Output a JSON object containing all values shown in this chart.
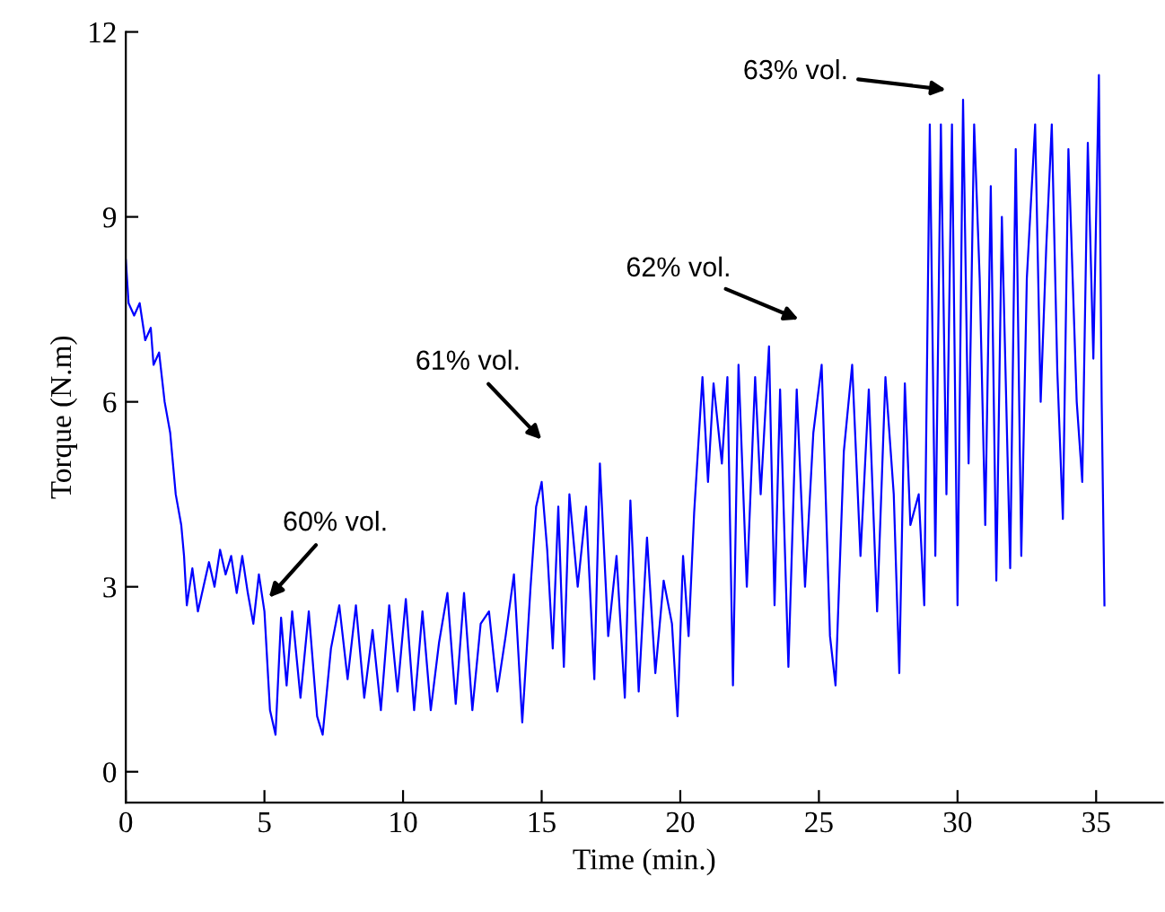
{
  "chart_data": {
    "type": "line",
    "xlabel": "Time (min.)",
    "ylabel": "Torque (N.m)",
    "xlim": [
      0,
      37.4
    ],
    "xticks": [
      0,
      5,
      10,
      15,
      20,
      25,
      30,
      35
    ],
    "ylim": [
      -0.5,
      12
    ],
    "yticks": [
      0,
      3,
      6,
      9,
      12
    ],
    "grid": false,
    "legend": false,
    "marker": "none",
    "line_style": "solid",
    "series": [
      {
        "color": "#0000ff",
        "x": [
          0,
          0.1,
          0.3,
          0.5,
          0.7,
          0.9,
          1.0,
          1.2,
          1.4,
          1.6,
          1.8,
          2.0,
          2.1,
          2.2,
          2.4,
          2.6,
          2.8,
          3.0,
          3.2,
          3.4,
          3.6,
          3.8,
          4.0,
          4.2,
          4.4,
          4.6,
          4.8,
          5.0,
          5.2,
          5.4,
          5.6,
          5.8,
          6.0,
          6.3,
          6.6,
          6.9,
          7.1,
          7.4,
          7.7,
          8.0,
          8.3,
          8.6,
          8.9,
          9.2,
          9.5,
          9.8,
          10.1,
          10.4,
          10.7,
          11.0,
          11.3,
          11.6,
          11.9,
          12.2,
          12.5,
          12.8,
          13.1,
          13.4,
          13.7,
          14.0,
          14.3,
          14.6,
          14.8,
          15.0,
          15.2,
          15.4,
          15.6,
          15.8,
          16.0,
          16.3,
          16.6,
          16.9,
          17.1,
          17.4,
          17.7,
          18.0,
          18.2,
          18.5,
          18.8,
          19.1,
          19.4,
          19.7,
          19.9,
          20.1,
          20.3,
          20.5,
          20.8,
          21.0,
          21.2,
          21.5,
          21.7,
          21.9,
          22.1,
          22.4,
          22.7,
          22.9,
          23.2,
          23.4,
          23.6,
          23.9,
          24.2,
          24.5,
          24.8,
          25.1,
          25.4,
          25.6,
          25.9,
          26.2,
          26.5,
          26.8,
          27.1,
          27.4,
          27.7,
          27.9,
          28.1,
          28.3,
          28.6,
          28.8,
          29.0,
          29.2,
          29.4,
          29.6,
          29.8,
          30.0,
          30.2,
          30.4,
          30.6,
          30.8,
          31.0,
          31.2,
          31.4,
          31.6,
          31.9,
          32.1,
          32.3,
          32.5,
          32.8,
          33.0,
          33.2,
          33.4,
          33.6,
          33.8,
          34.0,
          34.3,
          34.5,
          34.7,
          34.9,
          35.1,
          35.2,
          35.3
        ],
        "values": [
          8.3,
          7.6,
          7.4,
          7.6,
          7.0,
          7.2,
          6.6,
          6.8,
          6.0,
          5.5,
          4.5,
          4.0,
          3.5,
          2.7,
          3.3,
          2.6,
          3.0,
          3.4,
          3.0,
          3.6,
          3.2,
          3.5,
          2.9,
          3.5,
          2.9,
          2.4,
          3.2,
          2.6,
          1.0,
          0.6,
          2.5,
          1.4,
          2.6,
          1.2,
          2.6,
          0.9,
          0.6,
          2.0,
          2.7,
          1.5,
          2.7,
          1.2,
          2.3,
          1.0,
          2.7,
          1.3,
          2.8,
          1.0,
          2.6,
          1.0,
          2.1,
          2.9,
          1.1,
          2.9,
          1.0,
          2.4,
          2.6,
          1.3,
          2.2,
          3.2,
          0.8,
          3.0,
          4.3,
          4.7,
          3.6,
          2.0,
          4.3,
          1.7,
          4.5,
          3.0,
          4.3,
          1.5,
          5.0,
          2.2,
          3.5,
          1.2,
          4.4,
          1.3,
          3.8,
          1.6,
          3.1,
          2.4,
          0.9,
          3.5,
          2.2,
          4.2,
          6.4,
          4.7,
          6.3,
          5.0,
          6.4,
          1.4,
          6.6,
          3.0,
          6.4,
          4.5,
          6.9,
          2.7,
          6.2,
          1.7,
          6.2,
          3.0,
          5.5,
          6.6,
          2.2,
          1.4,
          5.2,
          6.6,
          3.5,
          6.2,
          2.6,
          6.4,
          4.5,
          1.6,
          6.3,
          4.0,
          4.5,
          2.7,
          10.5,
          3.5,
          10.5,
          4.5,
          10.5,
          2.7,
          10.9,
          5.0,
          10.5,
          8.0,
          4.0,
          9.5,
          3.1,
          9.0,
          3.3,
          10.1,
          3.5,
          8.0,
          10.5,
          6.0,
          8.5,
          10.5,
          6.5,
          4.1,
          10.1,
          6.0,
          4.7,
          10.2,
          6.7,
          11.3,
          6.0,
          2.7
        ]
      }
    ],
    "annotations": [
      "60% vol.",
      "61% vol.",
      "62% vol.",
      "63% vol."
    ]
  }
}
